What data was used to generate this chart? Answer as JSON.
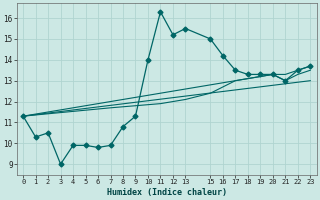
{
  "xlabel": "Humidex (Indice chaleur)",
  "bg_color": "#cce8e4",
  "grid_color": "#b0d4d0",
  "line_color": "#006666",
  "xlim": [
    -0.5,
    23.5
  ],
  "ylim": [
    8.5,
    16.7
  ],
  "yticks": [
    9,
    10,
    11,
    12,
    13,
    14,
    15,
    16
  ],
  "xtick_positions": [
    0,
    1,
    2,
    3,
    4,
    5,
    6,
    7,
    8,
    9,
    10,
    11,
    12,
    13,
    15,
    16,
    17,
    18,
    19,
    20,
    21,
    22,
    23
  ],
  "xtick_labels": [
    "0",
    "1",
    "2",
    "3",
    "4",
    "5",
    "6",
    "7",
    "8",
    "9",
    "10",
    "11",
    "12",
    "13",
    "15",
    "16",
    "17",
    "18",
    "19",
    "20",
    "21",
    "22",
    "23"
  ],
  "main_x": [
    0,
    1,
    2,
    3,
    4,
    5,
    6,
    7,
    8,
    9,
    10,
    11,
    12,
    13,
    15,
    16,
    17,
    18,
    19,
    20,
    21,
    22,
    23
  ],
  "main_y": [
    11.3,
    10.3,
    10.5,
    9.0,
    9.9,
    9.9,
    9.8,
    9.9,
    10.8,
    11.3,
    14.0,
    16.3,
    15.2,
    15.5,
    15.0,
    14.2,
    13.5,
    13.3,
    13.3,
    13.3,
    13.0,
    13.5,
    13.7
  ],
  "trend1_x": [
    0,
    1,
    2,
    3,
    4,
    5,
    6,
    7,
    8,
    9,
    10,
    11,
    12,
    13,
    15,
    16,
    17,
    18,
    19,
    20,
    21,
    22,
    23
  ],
  "trend1_y": [
    11.3,
    11.4,
    11.5,
    11.6,
    11.7,
    11.8,
    11.9,
    12.0,
    12.1,
    12.2,
    12.3,
    12.4,
    12.5,
    12.6,
    12.8,
    12.9,
    13.0,
    13.1,
    13.2,
    13.3,
    13.3,
    13.5,
    13.7
  ],
  "trend2_x": [
    0,
    7,
    8,
    9,
    10,
    11,
    12,
    13,
    15,
    16,
    17,
    18,
    19,
    20,
    21,
    22,
    23
  ],
  "trend2_y": [
    11.3,
    11.7,
    11.75,
    11.8,
    11.85,
    11.9,
    12.0,
    12.1,
    12.4,
    12.7,
    13.0,
    13.1,
    13.2,
    13.3,
    13.0,
    13.3,
    13.5
  ],
  "trend3_x": [
    0,
    23
  ],
  "trend3_y": [
    11.3,
    13.0
  ]
}
